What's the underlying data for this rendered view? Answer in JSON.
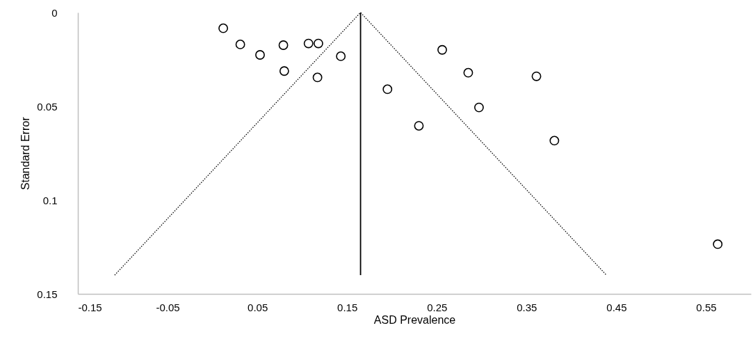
{
  "chart_data": {
    "type": "scatter",
    "xlabel": "ASD Prevalence",
    "ylabel": "Standard Error",
    "x": [
      0.012,
      0.031,
      0.053,
      0.079,
      0.107,
      0.118,
      0.143,
      0.08,
      0.117,
      0.195,
      0.256,
      0.285,
      0.361,
      0.297,
      0.23,
      0.381,
      0.563
    ],
    "series": [
      {
        "color": "#000000",
        "marker": "circle",
        "values": [
          0.0084,
          0.017,
          0.0226,
          0.0174,
          0.0165,
          0.0165,
          0.0233,
          0.0312,
          0.0346,
          0.0409,
          0.0199,
          0.0321,
          0.034,
          0.0506,
          0.0604,
          0.0683,
          0.1235
        ]
      },
      {
        "type": "line",
        "color": "#000000",
        "marker": "none",
        "line_style": "solid",
        "x": [
          0.165,
          0.165
        ],
        "values": [
          0,
          0.14
        ]
      },
      {
        "type": "line",
        "color": "#000000",
        "marker": "none",
        "line_style": "dotted",
        "x": [
          -0.109,
          0.165,
          0.439
        ],
        "values": [
          0.14,
          0,
          0.14
        ]
      }
    ],
    "xlim": [
      -0.15,
      0.6
    ],
    "xticks": [
      -0.15,
      -0.05,
      0.05,
      0.15,
      0.25,
      0.35,
      0.45,
      0.55
    ],
    "ylim": [
      0.15,
      0
    ],
    "yticks": [
      0,
      0.05,
      0.1,
      0.15
    ],
    "grid": false
  }
}
